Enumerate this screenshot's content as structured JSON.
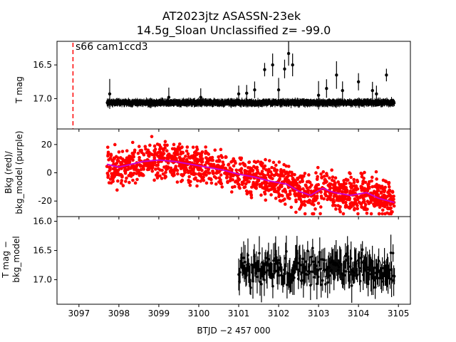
{
  "figure": {
    "title_line1": "AT2023jtz  ASASSN-23ek",
    "title_line2": "14.5g_Sloan Unclassified z= -99.0",
    "xlabel": "BTJD −2 457 000",
    "x_ticks": [
      3097,
      3098,
      3099,
      3100,
      3101,
      3102,
      3103,
      3104,
      3105
    ],
    "xlim": [
      3096.45,
      3105.3
    ]
  },
  "colors": {
    "data": "#000000",
    "bkg": "#ff0000",
    "bkg_model": "#cc00cc",
    "marker_line": "#ff0000"
  },
  "chart_data": [
    {
      "type": "scatter",
      "name": "T mag light curve",
      "ylabel": "T mag",
      "ylim": [
        17.45,
        16.15
      ],
      "y_ticks": [
        16.5,
        17.0
      ],
      "annotation": "s66 cam1ccd3",
      "sector_start_x": 3096.85,
      "series": [
        {
          "name": "baseline",
          "x_range": [
            3097.7,
            3104.9
          ],
          "y_center": 17.06,
          "y_spread": 0.05,
          "n_points": 1400
        },
        {
          "name": "bright outliers",
          "points": [
            {
              "x": 3097.77,
              "y": 16.93
            },
            {
              "x": 3099.25,
              "y": 16.98
            },
            {
              "x": 3100.05,
              "y": 16.98
            },
            {
              "x": 3101.0,
              "y": 16.93
            },
            {
              "x": 3101.2,
              "y": 16.92
            },
            {
              "x": 3101.4,
              "y": 16.87
            },
            {
              "x": 3101.65,
              "y": 16.57
            },
            {
              "x": 3101.85,
              "y": 16.5
            },
            {
              "x": 3102.0,
              "y": 16.87
            },
            {
              "x": 3102.15,
              "y": 16.56
            },
            {
              "x": 3102.25,
              "y": 16.33
            },
            {
              "x": 3102.35,
              "y": 16.5
            },
            {
              "x": 3103.0,
              "y": 16.95
            },
            {
              "x": 3103.2,
              "y": 16.85
            },
            {
              "x": 3103.45,
              "y": 16.65
            },
            {
              "x": 3103.6,
              "y": 16.88
            },
            {
              "x": 3104.0,
              "y": 16.75
            },
            {
              "x": 3104.35,
              "y": 16.88
            },
            {
              "x": 3104.45,
              "y": 16.93
            },
            {
              "x": 3104.7,
              "y": 16.65
            }
          ]
        }
      ]
    },
    {
      "type": "scatter",
      "name": "background",
      "ylabel_line1": "Bkg (red)/",
      "ylabel_line2": "bkg_model (purple)",
      "ylim": [
        -31,
        31
      ],
      "y_ticks": [
        -20,
        0,
        20
      ],
      "series": [
        {
          "name": "Bkg",
          "color_key": "bkg",
          "x_range": [
            3097.7,
            3104.9
          ],
          "scatter": 7,
          "n_points": 1500
        },
        {
          "name": "bkg_model",
          "color_key": "bkg_model",
          "points": [
            {
              "x": 3097.7,
              "y": 6
            },
            {
              "x": 3098.0,
              "y": 4
            },
            {
              "x": 3098.3,
              "y": 6
            },
            {
              "x": 3098.6,
              "y": 8
            },
            {
              "x": 3099.0,
              "y": 9
            },
            {
              "x": 3099.4,
              "y": 8
            },
            {
              "x": 3099.8,
              "y": 6
            },
            {
              "x": 3100.2,
              "y": 4
            },
            {
              "x": 3100.6,
              "y": 2
            },
            {
              "x": 3101.0,
              "y": -1
            },
            {
              "x": 3101.4,
              "y": -3
            },
            {
              "x": 3101.8,
              "y": -6
            },
            {
              "x": 3102.2,
              "y": -8
            },
            {
              "x": 3102.5,
              "y": -13
            },
            {
              "x": 3102.8,
              "y": -16
            },
            {
              "x": 3103.1,
              "y": -11
            },
            {
              "x": 3103.4,
              "y": -14
            },
            {
              "x": 3103.8,
              "y": -16
            },
            {
              "x": 3104.2,
              "y": -14
            },
            {
              "x": 3104.5,
              "y": -18
            },
            {
              "x": 3104.9,
              "y": -21
            }
          ]
        }
      ]
    },
    {
      "type": "scatter",
      "name": "T mag minus bkg_model",
      "ylabel_line1": "T mag −",
      "ylabel_line2": "bkg_model",
      "ylim": [
        17.42,
        15.92
      ],
      "y_ticks": [
        16.0,
        16.5,
        17.0
      ],
      "series": [
        {
          "name": "difference",
          "x_range": [
            3101.0,
            3104.9
          ],
          "y_center": 16.82,
          "y_spread": 0.28,
          "n_points": 220
        }
      ]
    }
  ]
}
